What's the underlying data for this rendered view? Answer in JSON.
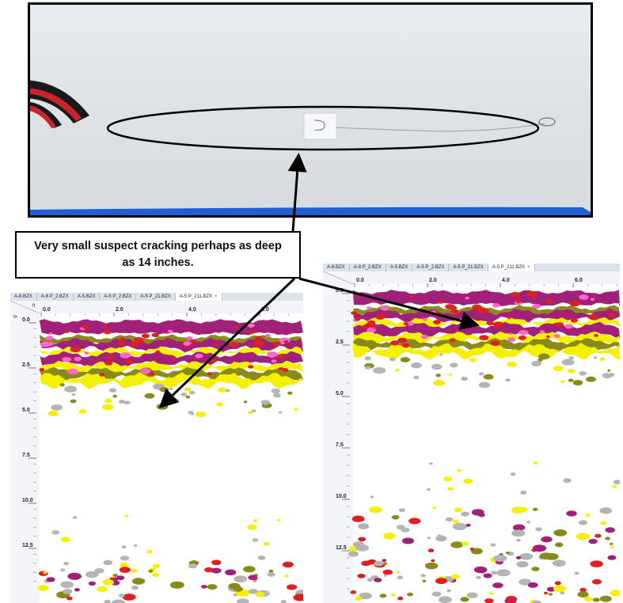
{
  "callout": {
    "text": "Very small suspect cracking perhaps as deep as 14 inches."
  },
  "left_scan": {
    "tabs": [
      "A-8.BZX",
      "A-8 P_2.BZX",
      "A-5.BZX",
      "A-5 P_2.BZX",
      "A-5 P_21.BZX",
      "A-5 P_211.BZX"
    ],
    "active_tab": "A-5 P_211.BZX",
    "close_glyph": "×",
    "x_unit": "ft",
    "y_unit": "in",
    "x_ticks": [
      "0.0",
      "2.0",
      "4.0",
      "6.0"
    ],
    "y_ticks": [
      "0.0",
      "2.5",
      "5.0",
      "7.5",
      "10.0",
      "12.5"
    ]
  },
  "right_scan": {
    "tabs": [
      "A-8.BZX",
      "A-8 P_2.BZX",
      "A-5.BZX",
      "A-5 P_2.BZX",
      "A-5 P_21.BZX",
      "A-5 P_211.BZX"
    ],
    "active_tab": "A-5 P_211.BZX",
    "close_glyph": "×",
    "x_ticks": [
      "0.0",
      "2.0",
      "4.0",
      "6.0"
    ],
    "y_ticks": [
      "0.0",
      "2.5",
      "5.0",
      "7.5",
      "10.0",
      "12.5"
    ]
  },
  "colors": {
    "magenta": "#a0207a",
    "red": "#e02020",
    "olive": "#8a8a1a",
    "yellow": "#f4f000",
    "gray": "#b4b4b4",
    "tape_blue": "#1e5fd6"
  }
}
